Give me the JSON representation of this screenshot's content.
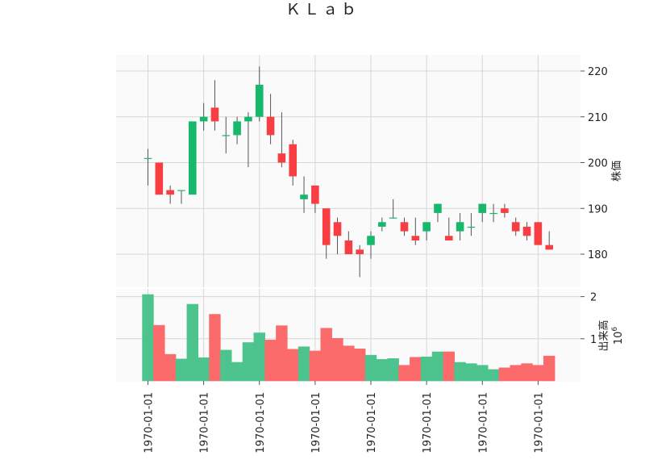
{
  "chart_data": {
    "type": "candlestick",
    "title": "ＫＬａｂ",
    "up_color": "#16b86e",
    "down_color": "#f93e43",
    "volume_up_color": "#4dc48e",
    "volume_down_color": "#fb6b6b",
    "grid": true,
    "price_axis": {
      "label": "株価",
      "ticks": [
        180,
        190,
        200,
        210,
        220
      ],
      "range": [
        173,
        223
      ]
    },
    "volume_axis": {
      "label": "出来高",
      "multiplier_label": "10",
      "multiplier_exp": "6",
      "ticks": [
        1,
        2
      ],
      "tick_labels": [
        "1",
        "2"
      ],
      "range": [
        0,
        2.17
      ]
    },
    "x_tick_labels": [
      "1970-01-01",
      "1970-01-01",
      "1970-01-01",
      "1970-01-01",
      "1970-01-01",
      "1970-01-01",
      "1970-01-01",
      "1970-01-01"
    ],
    "x_tick_positions": [
      0,
      5,
      10,
      15,
      20,
      25,
      30,
      35
    ],
    "candles": [
      {
        "open": 201,
        "high": 203,
        "low": 195,
        "close": 201,
        "volume": 2.05
      },
      {
        "open": 200,
        "high": 200,
        "low": 193,
        "close": 193,
        "volume": 1.32
      },
      {
        "open": 194,
        "high": 195,
        "low": 191,
        "close": 193,
        "volume": 0.63
      },
      {
        "open": 194,
        "high": 194,
        "low": 191,
        "close": 194,
        "volume": 0.52
      },
      {
        "open": 193,
        "high": 209,
        "low": 193,
        "close": 209,
        "volume": 1.82
      },
      {
        "open": 209,
        "high": 213,
        "low": 207,
        "close": 210,
        "volume": 0.55
      },
      {
        "open": 212,
        "high": 218,
        "low": 207,
        "close": 209,
        "volume": 1.58
      },
      {
        "open": 206,
        "high": 210,
        "low": 202,
        "close": 206,
        "volume": 0.73
      },
      {
        "open": 206,
        "high": 210,
        "low": 204,
        "close": 209,
        "volume": 0.44
      },
      {
        "open": 209,
        "high": 211,
        "low": 199,
        "close": 210,
        "volume": 0.91
      },
      {
        "open": 210,
        "high": 221,
        "low": 209,
        "close": 217,
        "volume": 1.14
      },
      {
        "open": 210,
        "high": 215,
        "low": 204,
        "close": 206,
        "volume": 0.97
      },
      {
        "open": 202,
        "high": 211,
        "low": 199,
        "close": 200,
        "volume": 1.31
      },
      {
        "open": 204,
        "high": 205,
        "low": 195,
        "close": 197,
        "volume": 0.75
      },
      {
        "open": 192,
        "high": 197,
        "low": 189,
        "close": 193,
        "volume": 0.81
      },
      {
        "open": 195,
        "high": 195,
        "low": 189,
        "close": 191,
        "volume": 0.71
      },
      {
        "open": 190,
        "high": 190,
        "low": 179,
        "close": 182,
        "volume": 1.25
      },
      {
        "open": 187,
        "high": 188,
        "low": 180,
        "close": 184,
        "volume": 1.01
      },
      {
        "open": 183,
        "high": 185,
        "low": 180,
        "close": 180,
        "volume": 0.83
      },
      {
        "open": 181,
        "high": 182,
        "low": 175,
        "close": 180,
        "volume": 0.76
      },
      {
        "open": 182,
        "high": 185,
        "low": 179,
        "close": 184,
        "volume": 0.61
      },
      {
        "open": 186,
        "high": 188,
        "low": 185,
        "close": 187,
        "volume": 0.51
      },
      {
        "open": 188,
        "high": 192,
        "low": 188,
        "close": 188,
        "volume": 0.53
      },
      {
        "open": 187,
        "high": 188,
        "low": 184,
        "close": 185,
        "volume": 0.37
      },
      {
        "open": 184,
        "high": 188,
        "low": 182,
        "close": 183,
        "volume": 0.56
      },
      {
        "open": 185,
        "high": 187,
        "low": 183,
        "close": 187,
        "volume": 0.57
      },
      {
        "open": 189,
        "high": 191,
        "low": 187,
        "close": 191,
        "volume": 0.69
      },
      {
        "open": 184,
        "high": 188,
        "low": 183,
        "close": 183,
        "volume": 0.69
      },
      {
        "open": 185,
        "high": 189,
        "low": 183,
        "close": 187,
        "volume": 0.44
      },
      {
        "open": 186,
        "high": 189,
        "low": 184,
        "close": 186,
        "volume": 0.41
      },
      {
        "open": 189,
        "high": 191,
        "low": 187,
        "close": 191,
        "volume": 0.37
      },
      {
        "open": 189,
        "high": 191,
        "low": 187,
        "close": 189,
        "volume": 0.27
      },
      {
        "open": 190,
        "high": 191,
        "low": 188,
        "close": 189,
        "volume": 0.31
      },
      {
        "open": 187,
        "high": 188,
        "low": 184,
        "close": 185,
        "volume": 0.37
      },
      {
        "open": 186,
        "high": 187,
        "low": 183,
        "close": 184,
        "volume": 0.41
      },
      {
        "open": 187,
        "high": 187,
        "low": 182,
        "close": 182,
        "volume": 0.37
      },
      {
        "open": 182,
        "high": 185,
        "low": 181,
        "close": 181,
        "volume": 0.59
      }
    ]
  }
}
